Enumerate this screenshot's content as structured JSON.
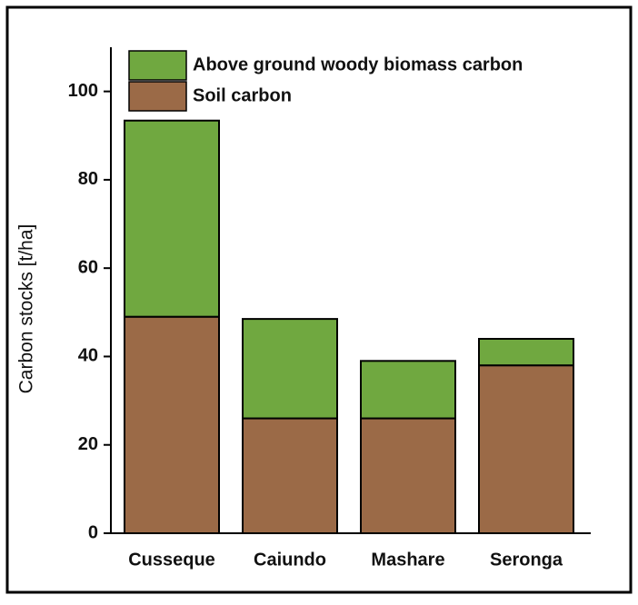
{
  "chart_data": {
    "type": "stacked-bar",
    "y_label": "Carbon stocks [t/ha]",
    "categories": [
      "Cusseque",
      "Caiundo",
      "Mashare",
      "Seronga"
    ],
    "series": [
      {
        "name": "Soil carbon",
        "color": "#9b6a47",
        "values": [
          49,
          26,
          26,
          38
        ]
      },
      {
        "name": "Above ground woody biomass carbon",
        "color": "#70a840",
        "values": [
          44.4,
          22.5,
          13,
          6
        ]
      }
    ],
    "ylim": [
      0,
      110
    ],
    "yticks": [
      0,
      20,
      40,
      60,
      80,
      100
    ]
  }
}
